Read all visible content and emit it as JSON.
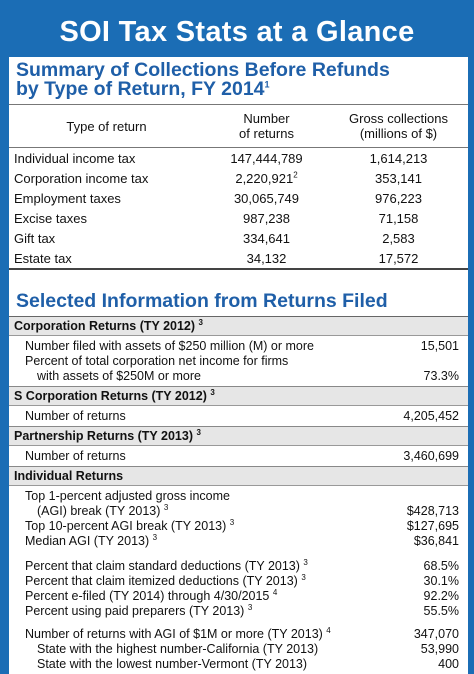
{
  "title": "SOI Tax Stats at a Glance",
  "summary": {
    "heading_line1": "Summary of Collections Before Refunds",
    "heading_line2": "by Type of Return, FY 2014",
    "heading_note": "1",
    "col_type": "Type of return",
    "col_number_l1": "Number",
    "col_number_l2": "of returns",
    "col_gross_l1": "Gross collections",
    "col_gross_l2": "(millions of $)",
    "rows": [
      {
        "type": "Individual income tax",
        "number": "147,444,789",
        "note": "",
        "gross": "1,614,213"
      },
      {
        "type": "Corporation income tax",
        "number": "2,220,921",
        "note": "2",
        "gross": "353,141"
      },
      {
        "type": "Employment taxes",
        "number": "30,065,749",
        "note": "",
        "gross": "976,223"
      },
      {
        "type": "Excise taxes",
        "number": "987,238",
        "note": "",
        "gross": "71,158"
      },
      {
        "type": "Gift tax",
        "number": "334,641",
        "note": "",
        "gross": "2,583"
      },
      {
        "type": "Estate tax",
        "number": "34,132",
        "note": "",
        "gross": "17,572"
      }
    ]
  },
  "selected": {
    "heading": "Selected Information from Returns Filed",
    "corp": {
      "title": "Corporation Returns (TY 2012)",
      "note": "3",
      "row1_label": "Number filed with assets of $250 million (M) or more",
      "row1_value": "15,501",
      "row2_label_l1": "Percent of total corporation net income for firms",
      "row2_label_l2": "with assets of $250M or more",
      "row2_value": "73.3%"
    },
    "scorp": {
      "title": "S Corporation Returns (TY 2012)",
      "note": "3",
      "row_label": "Number of returns",
      "row_value": "4,205,452"
    },
    "partner": {
      "title": "Partnership Returns (TY 2013)",
      "note": "3",
      "row_label": "Number of returns",
      "row_value": "3,460,699"
    },
    "indiv": {
      "title": "Individual Returns",
      "top1_l1": "Top 1-percent adjusted gross income",
      "top1_l2": "(AGI) break (TY 2013)",
      "top1_note": "3",
      "top1_value": "$428,713",
      "top10_label": "Top 10-percent AGI break (TY 2013)",
      "top10_note": "3",
      "top10_value": "$127,695",
      "median_label": "Median AGI (TY 2013)",
      "median_note": "3",
      "median_value": "$36,841",
      "std_label": "Percent that claim standard deductions (TY 2013)",
      "std_note": "3",
      "std_value": "68.5%",
      "item_label": "Percent that claim itemized deductions (TY 2013)",
      "item_note": "3",
      "item_value": "30.1%",
      "efile_label": "Percent e-filed (TY 2014) through 4/30/2015",
      "efile_note": "4",
      "efile_value": "92.2%",
      "prep_label": "Percent using paid preparers (TY 2013)",
      "prep_note": "3",
      "prep_value": "55.5%",
      "agi1m_label": "Number of returns with AGI of $1M or more (TY 2013)",
      "agi1m_note": "4",
      "agi1m_value": "347,070",
      "high_label": "State with the highest number-California (TY 2013)",
      "high_value": "53,990",
      "low_label": "State with the lowest number-Vermont (TY 2013)",
      "low_value": "400"
    }
  }
}
